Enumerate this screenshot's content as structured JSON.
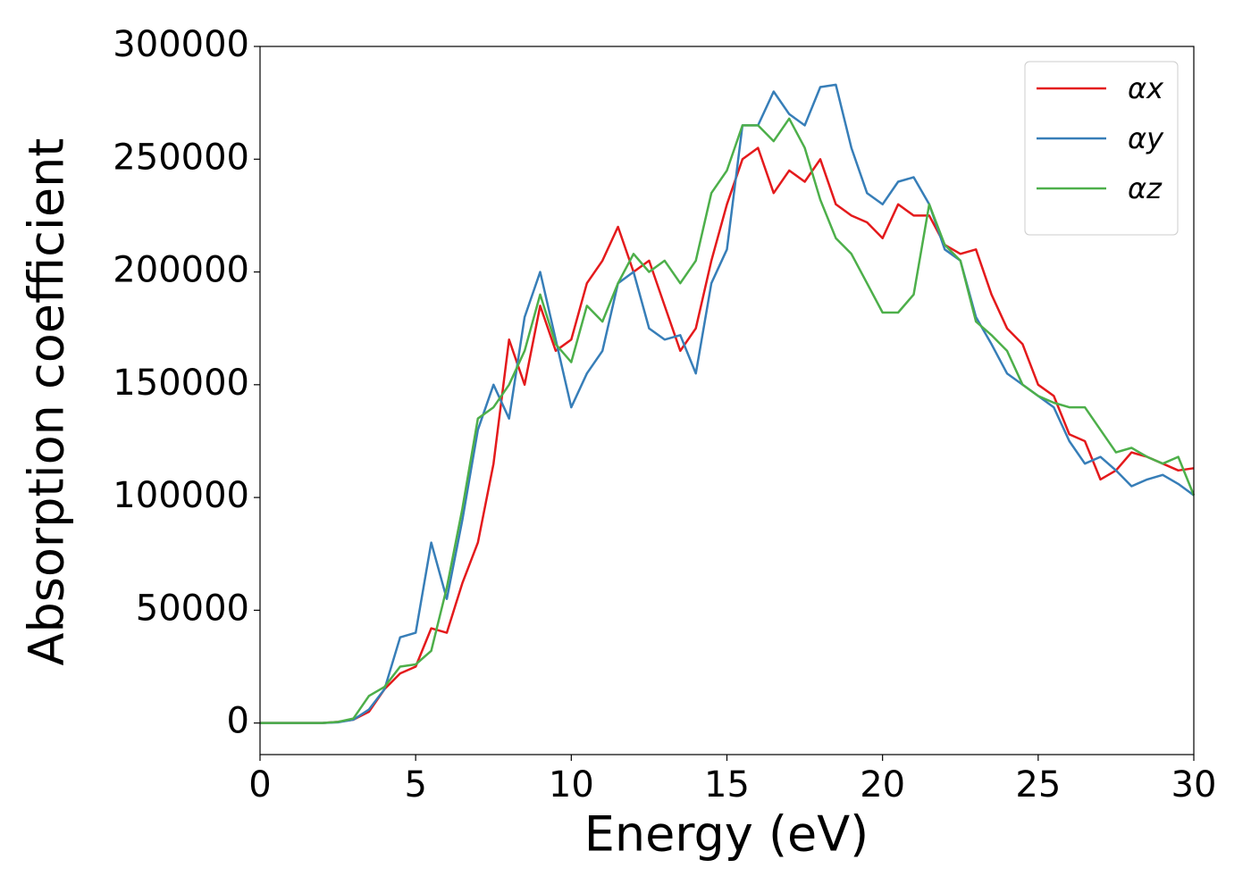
{
  "chart_data": {
    "type": "line",
    "xlabel": "Energy (eV)",
    "ylabel": "Absorption coefficient",
    "x": [
      0,
      0.5,
      1,
      1.5,
      2,
      2.5,
      3,
      3.5,
      4,
      4.5,
      5,
      5.5,
      6,
      6.5,
      7,
      7.5,
      8,
      8.5,
      9,
      9.5,
      10,
      10.5,
      11,
      11.5,
      12,
      12.5,
      13,
      13.5,
      14,
      14.5,
      15,
      15.5,
      16,
      16.5,
      17,
      17.5,
      18,
      18.5,
      19,
      19.5,
      20,
      20.5,
      21,
      21.5,
      22,
      22.5,
      23,
      23.5,
      24,
      24.5,
      25,
      25.5,
      26,
      26.5,
      27,
      27.5,
      28,
      28.5,
      29,
      29.5,
      30
    ],
    "series": [
      {
        "name": "αx",
        "color": "#e41a1c",
        "values": [
          0,
          0,
          0,
          0,
          0,
          500,
          1500,
          5000,
          15000,
          22000,
          25000,
          42000,
          40000,
          62000,
          80000,
          115000,
          170000,
          150000,
          185000,
          165000,
          170000,
          195000,
          205000,
          220000,
          200000,
          205000,
          185000,
          165000,
          175000,
          205000,
          230000,
          250000,
          255000,
          235000,
          245000,
          240000,
          250000,
          230000,
          225000,
          222000,
          215000,
          230000,
          225000,
          225000,
          212000,
          208000,
          210000,
          190000,
          175000,
          168000,
          150000,
          145000,
          128000,
          125000,
          108000,
          112000,
          120000,
          118000,
          115000,
          112000,
          113000
        ]
      },
      {
        "name": "αy",
        "color": "#377eb8",
        "values": [
          0,
          0,
          0,
          0,
          0,
          300,
          1500,
          6000,
          15000,
          38000,
          40000,
          80000,
          55000,
          90000,
          130000,
          150000,
          135000,
          180000,
          200000,
          170000,
          140000,
          155000,
          165000,
          195000,
          200000,
          175000,
          170000,
          172000,
          155000,
          195000,
          210000,
          265000,
          265000,
          280000,
          270000,
          265000,
          282000,
          283000,
          255000,
          235000,
          230000,
          240000,
          242000,
          230000,
          210000,
          205000,
          180000,
          168000,
          155000,
          150000,
          145000,
          140000,
          125000,
          115000,
          118000,
          112000,
          105000,
          108000,
          110000,
          106000,
          101000
        ]
      },
      {
        "name": "αz",
        "color": "#4daf4a",
        "values": [
          0,
          0,
          0,
          0,
          0,
          500,
          2000,
          12000,
          16000,
          25000,
          26000,
          32000,
          60000,
          95000,
          135000,
          140000,
          150000,
          165000,
          190000,
          168000,
          160000,
          185000,
          178000,
          195000,
          208000,
          200000,
          205000,
          195000,
          205000,
          235000,
          245000,
          265000,
          265000,
          258000,
          268000,
          255000,
          232000,
          215000,
          208000,
          195000,
          182000,
          182000,
          190000,
          230000,
          212000,
          205000,
          178000,
          172000,
          165000,
          150000,
          145000,
          142000,
          140000,
          140000,
          130000,
          120000,
          122000,
          118000,
          115000,
          118000,
          101000
        ]
      }
    ],
    "xlim": [
      0,
      30
    ],
    "xticks": [
      0,
      5,
      10,
      15,
      20,
      25,
      30
    ],
    "ylim": [
      -14000,
      300000
    ],
    "yticks": [
      0,
      50000,
      100000,
      150000,
      200000,
      250000,
      300000
    ],
    "legend": "upper right",
    "grid": false
  }
}
